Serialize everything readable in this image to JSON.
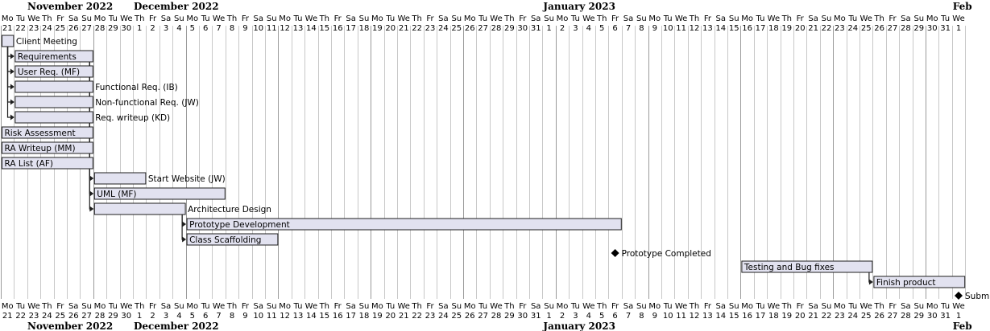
{
  "chart_data": {
    "type": "gantt",
    "header_months": [
      {
        "label": "November 2022",
        "start": "2022-11-21"
      },
      {
        "label": "December 2022",
        "start": "2022-12-01"
      },
      {
        "label": "January 2023",
        "start": "2023-01-01"
      },
      {
        "label": "Feb",
        "start": "2023-02-01"
      }
    ],
    "date_range": [
      "2022-11-21",
      "2023-02-01"
    ],
    "tasks": [
      {
        "name": "Client Meeting",
        "start": "2022-11-21",
        "end": "2022-11-21",
        "label_inside": true
      },
      {
        "name": "Requirements",
        "start": "2022-11-22",
        "end": "2022-11-27",
        "label_inside": true
      },
      {
        "name": "User Req. (MF)",
        "start": "2022-11-22",
        "end": "2022-11-27",
        "label_inside": true
      },
      {
        "name": "Functional Req. (IB)",
        "start": "2022-11-22",
        "end": "2022-11-27",
        "label_inside": false
      },
      {
        "name": "Non-functional Req. (JW)",
        "start": "2022-11-22",
        "end": "2022-11-27",
        "label_inside": false
      },
      {
        "name": "Req. writeup (KD)",
        "start": "2022-11-22",
        "end": "2022-11-27",
        "label_inside": false
      },
      {
        "name": "Risk Assessment",
        "start": "2022-11-21",
        "end": "2022-11-27",
        "label_inside": true
      },
      {
        "name": "RA Writeup (MM)",
        "start": "2022-11-21",
        "end": "2022-11-27",
        "label_inside": true
      },
      {
        "name": "RA List (AF)",
        "start": "2022-11-21",
        "end": "2022-11-27",
        "label_inside": true
      },
      {
        "name": "Start Website (JW)",
        "start": "2022-11-28",
        "end": "2022-12-01",
        "label_inside": false
      },
      {
        "name": "UML (MF)",
        "start": "2022-11-28",
        "end": "2022-12-07",
        "label_inside": true
      },
      {
        "name": "Architecture Design",
        "start": "2022-11-28",
        "end": "2022-12-04",
        "label_inside": false
      },
      {
        "name": "Prototype Development",
        "start": "2022-12-05",
        "end": "2023-01-06",
        "label_inside": true
      },
      {
        "name": "Class Scaffolding",
        "start": "2022-12-05",
        "end": "2022-12-11",
        "label_inside": true
      },
      {
        "name": "Prototype Completed",
        "milestone": "2023-01-06"
      },
      {
        "name": "Testing and Bug fixes",
        "start": "2023-01-16",
        "end": "2023-01-25",
        "label_inside": true
      },
      {
        "name": "Finish product",
        "start": "2023-01-26",
        "end": "2023-02-01",
        "label_inside": true
      },
      {
        "name": "Submission",
        "milestone": "2023-02-01"
      }
    ],
    "dependencies": [
      {
        "from": "Client Meeting",
        "to": "Requirements"
      },
      {
        "from": "Client Meeting",
        "to": "User Req. (MF)"
      },
      {
        "from": "Client Meeting",
        "to": "Functional Req. (IB)"
      },
      {
        "from": "Client Meeting",
        "to": "Non-functional Req. (JW)"
      },
      {
        "from": "Client Meeting",
        "to": "Req. writeup (KD)"
      },
      {
        "from": "Requirements",
        "to": "Start Website (JW)"
      },
      {
        "from": "Requirements",
        "to": "UML (MF)"
      },
      {
        "from": "Requirements",
        "to": "Architecture Design"
      },
      {
        "from": "Architecture Design",
        "to": "Prototype Development"
      },
      {
        "from": "Architecture Design",
        "to": "Class Scaffolding"
      },
      {
        "from": "Testing and Bug fixes",
        "to": "Finish product"
      }
    ]
  }
}
